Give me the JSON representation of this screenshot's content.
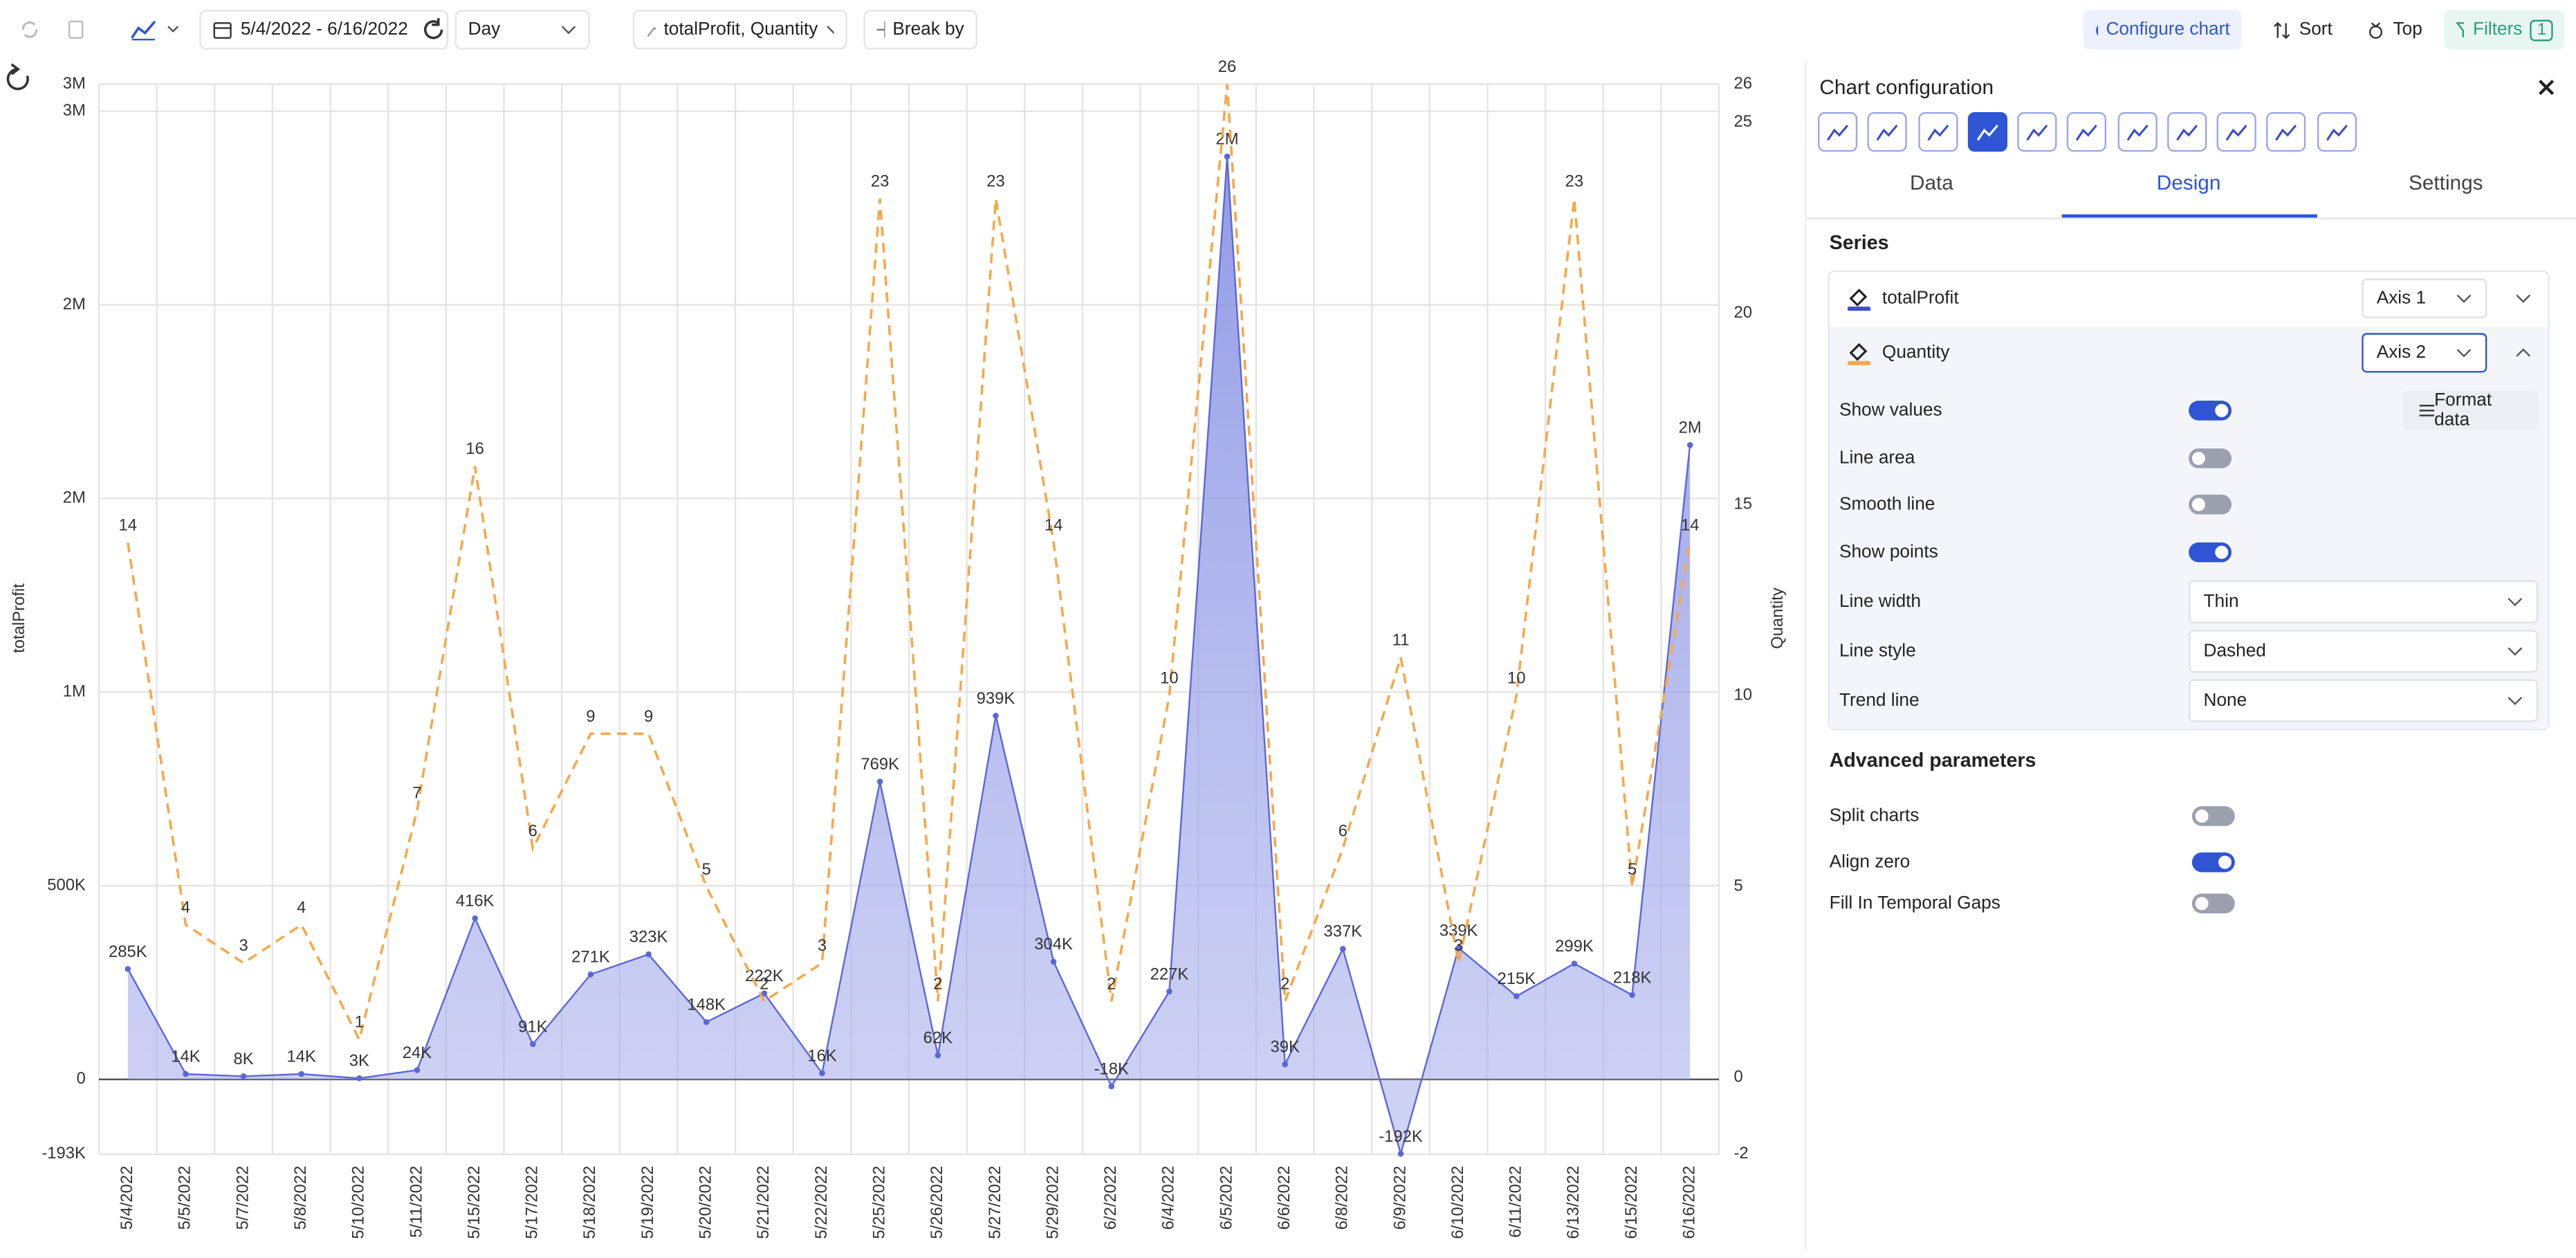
{
  "ui": {
    "toolbar": {
      "date_range": "5/4/2022 - 6/16/2022",
      "granularity": "Day",
      "measures": "totalProfit, Quantity",
      "break_by": "Break by",
      "configure": "Configure chart",
      "sort": "Sort",
      "top": "Top",
      "filters": "Filters",
      "filter_count": "1"
    },
    "panel": {
      "title": "Chart configuration",
      "tabs": [
        "Data",
        "Design",
        "Settings"
      ],
      "active_tab": 1,
      "series_heading": "Series",
      "series_axes": [
        "Axis 1",
        "Axis 2"
      ],
      "toggles": [
        {
          "label": "Show values",
          "on": true
        },
        {
          "label": "Line area",
          "on": false
        },
        {
          "label": "Smooth line",
          "on": false
        },
        {
          "label": "Show points",
          "on": true
        }
      ],
      "format_data": "Format data",
      "selects": [
        {
          "label": "Line width",
          "value": "Thin"
        },
        {
          "label": "Line style",
          "value": "Dashed"
        },
        {
          "label": "Trend line",
          "value": "None"
        }
      ],
      "advanced_heading": "Advanced parameters",
      "advanced": [
        {
          "label": "Split charts",
          "on": false
        },
        {
          "label": "Align zero",
          "on": true
        },
        {
          "label": "Fill In Temporal Gaps",
          "on": false
        }
      ]
    }
  },
  "chart_data": {
    "type": "line",
    "y_label": "totalProfit",
    "y2_label": "Quantity",
    "grid": true,
    "categories": [
      "5/4/2022",
      "5/5/2022",
      "5/7/2022",
      "5/8/2022",
      "5/10/2022",
      "5/11/2022",
      "5/15/2022",
      "5/17/2022",
      "5/18/2022",
      "5/19/2022",
      "5/20/2022",
      "5/21/2022",
      "5/22/2022",
      "5/25/2022",
      "5/26/2022",
      "5/27/2022",
      "5/29/2022",
      "6/2/2022",
      "6/4/2022",
      "6/5/2022",
      "6/6/2022",
      "6/8/2022",
      "6/9/2022",
      "6/10/2022",
      "6/11/2022",
      "6/13/2022",
      "6/15/2022",
      "6/16/2022"
    ],
    "ylim": [
      -193000,
      2570000
    ],
    "yticks": [
      {
        "value": -193000,
        "label": "-193K"
      },
      0,
      {
        "value": 500000,
        "label": "500K"
      },
      {
        "value": 1000000,
        "label": "1M"
      },
      {
        "value": 1500000,
        "label": "2M"
      },
      {
        "value": 2000000,
        "label": "2M"
      },
      {
        "value": 2500000,
        "label": "3M"
      },
      {
        "value": 2570000,
        "label": "3M"
      }
    ],
    "y2lim": [
      -2,
      26
    ],
    "y2ticks": [
      -2,
      0,
      5,
      10,
      15,
      20,
      25,
      26
    ],
    "series": [
      {
        "name": "totalProfit",
        "color": "#5b67d6",
        "area": true,
        "values": [
          285000,
          14000,
          8000,
          14000,
          3000,
          24000,
          416000,
          91000,
          271000,
          323000,
          148000,
          222000,
          16000,
          769000,
          62000,
          939000,
          304000,
          -18000,
          227000,
          2383000,
          39000,
          337000,
          -192000,
          339000,
          215000,
          299000,
          218000,
          1638000
        ],
        "value_labels": [
          "285K",
          "14K",
          "8K",
          "14K",
          "3K",
          "24K",
          "416K",
          "91K",
          "271K",
          "323K",
          "148K",
          "222K",
          "16K",
          "769K",
          "62K",
          "939K",
          "304K",
          "-18K",
          "227K",
          "2M",
          "39K",
          "337K",
          "-192K",
          "339K",
          "215K",
          "299K",
          "218K",
          "2M"
        ]
      },
      {
        "name": "Quantity",
        "color": "#f5a84b",
        "axis": "y2",
        "dashed": true,
        "values": [
          14,
          4,
          3,
          4,
          1,
          7,
          16,
          6,
          9,
          9,
          5,
          2,
          3,
          23,
          2,
          23,
          14,
          2,
          10,
          26,
          2,
          6,
          11,
          3,
          10,
          23,
          5,
          14
        ]
      }
    ]
  }
}
